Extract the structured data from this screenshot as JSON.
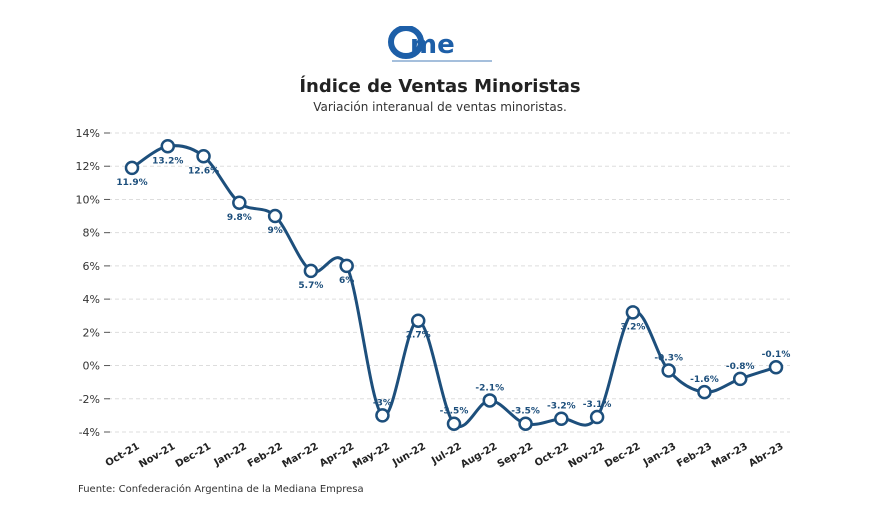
{
  "logo_text": "came",
  "logo_tagline": "Confederación Argentina de la Mediana Empresa",
  "source": "Fuente: Confederación Argentina de la Mediana Empresa",
  "colors": {
    "line": "#1d4f7c",
    "grid": "#dddddd"
  },
  "chart_data": {
    "type": "line",
    "title": "Índice de Ventas Minoristas",
    "subtitle": "Variación interanual de ventas minoristas.",
    "xlabel": "",
    "ylabel": "",
    "ylim": [
      -4,
      14
    ],
    "yticks": [
      "-4%",
      "-2%",
      "0%",
      "2%",
      "4%",
      "6%",
      "8%",
      "10%",
      "12%",
      "14%"
    ],
    "ytick_values": [
      -4,
      -2,
      0,
      2,
      4,
      6,
      8,
      10,
      12,
      14
    ],
    "grid": true,
    "categories": [
      "Oct-21",
      "Nov-21",
      "Dec-21",
      "Jan-22",
      "Feb-22",
      "Mar-22",
      "Apr-22",
      "May-22",
      "Jun-22",
      "Jul-22",
      "Aug-22",
      "Sep-22",
      "Oct-22",
      "Nov-22",
      "Dec-22",
      "Jan-23",
      "Feb-23",
      "Mar-23",
      "Abr-23"
    ],
    "values": [
      11.9,
      13.2,
      12.6,
      9.8,
      9,
      5.7,
      6,
      -3,
      2.7,
      -3.5,
      -2.1,
      -3.5,
      -3.2,
      -3.1,
      3.2,
      -0.3,
      -1.6,
      -0.8,
      -0.1
    ],
    "labels": [
      "11.9%",
      "13.2%",
      "12.6%",
      "9.8%",
      "9%",
      "5.7%",
      "6%",
      "-3%",
      "2.7%",
      "-3.5%",
      "-2.1%",
      "-3.5%",
      "-3.2%",
      "-3.1%",
      "3.2%",
      "-0.3%",
      "-1.6%",
      "-0.8%",
      "-0.1%"
    ],
    "label_placement": [
      "below",
      "below",
      "below",
      "below",
      "below",
      "below",
      "below",
      "above",
      "below",
      "above",
      "above",
      "above",
      "above",
      "above",
      "below",
      "above",
      "above",
      "above",
      "above"
    ]
  }
}
